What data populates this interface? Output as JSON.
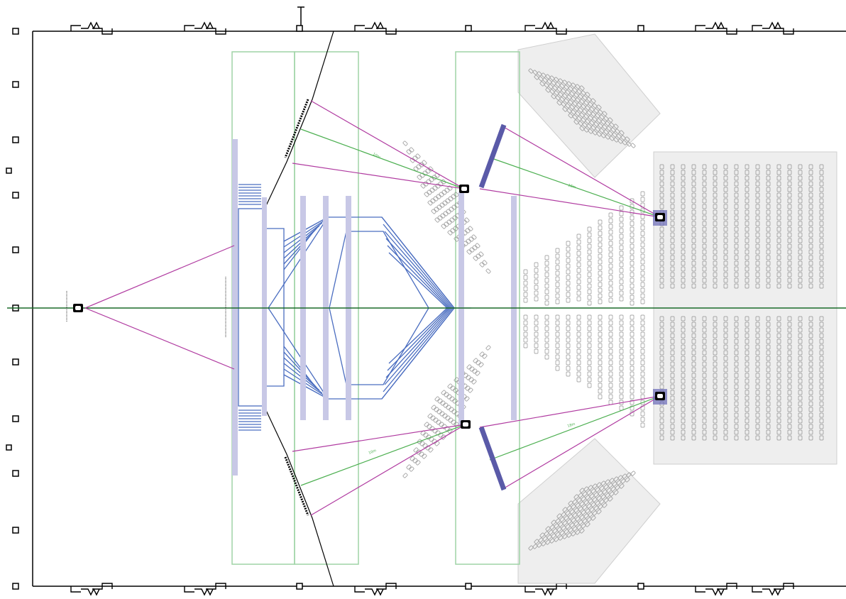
{
  "colors": {
    "background": "#ffffff",
    "wall": "#000000",
    "axis": "#1a6b2a",
    "sightline_magenta": "#b03aa0",
    "sightline_green": "#4caf50",
    "zone_green": "#9fd4a6",
    "stage_blue": "#4a6dc0",
    "truss_light": "#c8c8e6",
    "truss_dark": "#5a5aa8",
    "seat": "#9a9a9a",
    "seat_block_fill": "#eeeeee",
    "seat_block_stroke": "#cfcfcf"
  },
  "legend_icons": {
    "door_icon": "door-symbol",
    "column_icon": "column-marker",
    "camera_icon": "camera-position",
    "screen_icon": "projection-screen"
  },
  "annotations": {
    "distance_label_upper": "10m",
    "distance_label_lower": "10m",
    "distance_label_right_upper": "18m",
    "distance_label_right_lower": "18m"
  }
}
